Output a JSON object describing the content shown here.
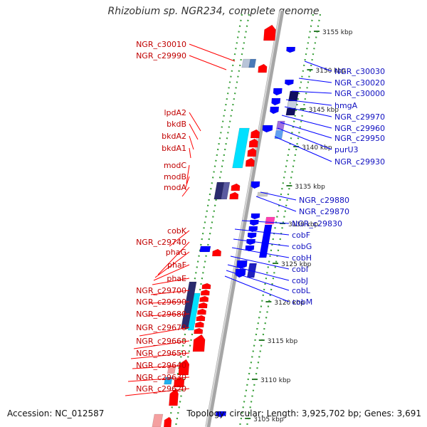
{
  "title": "Rhizobium sp. NGR234, complete genome",
  "footer": {
    "accession": "Accession: NC_012587",
    "topology": "Topology: circular; Length: 3,925,702 bp; Genes: 3,691"
  },
  "colors": {
    "forward_gene": "#ff0000",
    "reverse_gene": "#0000ff",
    "cyan_feature": "#00e0ff",
    "navy_feature": "#2a2a6e",
    "backbone": "#a6a6a6",
    "tick_dots": "#3aa03a"
  },
  "scale_ticks": [
    "3155 kbp",
    "3150 kbp",
    "3145 kbp",
    "3140 kbp",
    "3135 kbp",
    "3130 kbp",
    "3125 kbp",
    "3120 kbp",
    "3115 kbp",
    "3110 kbp",
    "3105 kbp"
  ],
  "left_labels": [
    "NGR_c30010",
    "NGR_c29990",
    "lpdA2",
    "bkdB",
    "bkdA2",
    "bkdA1",
    "modC",
    "modB",
    "modA",
    "cobK",
    "NGR_c29740",
    "phaG",
    "phaF",
    "phaE",
    "NGR_c29700",
    "NGR_c29690",
    "NGR_c29680",
    "NGR_c29670",
    "NGR_c29660",
    "NGR_c29650",
    "NGR_c29640",
    "NGR_c29630",
    "NGR_c29620"
  ],
  "right_labels": [
    "NGR_c30030",
    "NGR_c30020",
    "NGR_c30000",
    "hmgA",
    "NGR_c29970",
    "NGR_c29960",
    "NGR_c29950",
    "purU3",
    "NGR_c29930",
    "NGR_c29880",
    "NGR_c29870",
    "NGR_c29830",
    "cobF",
    "cobG",
    "cobH",
    "cobI",
    "cobJ",
    "cobL",
    "cobM"
  ]
}
